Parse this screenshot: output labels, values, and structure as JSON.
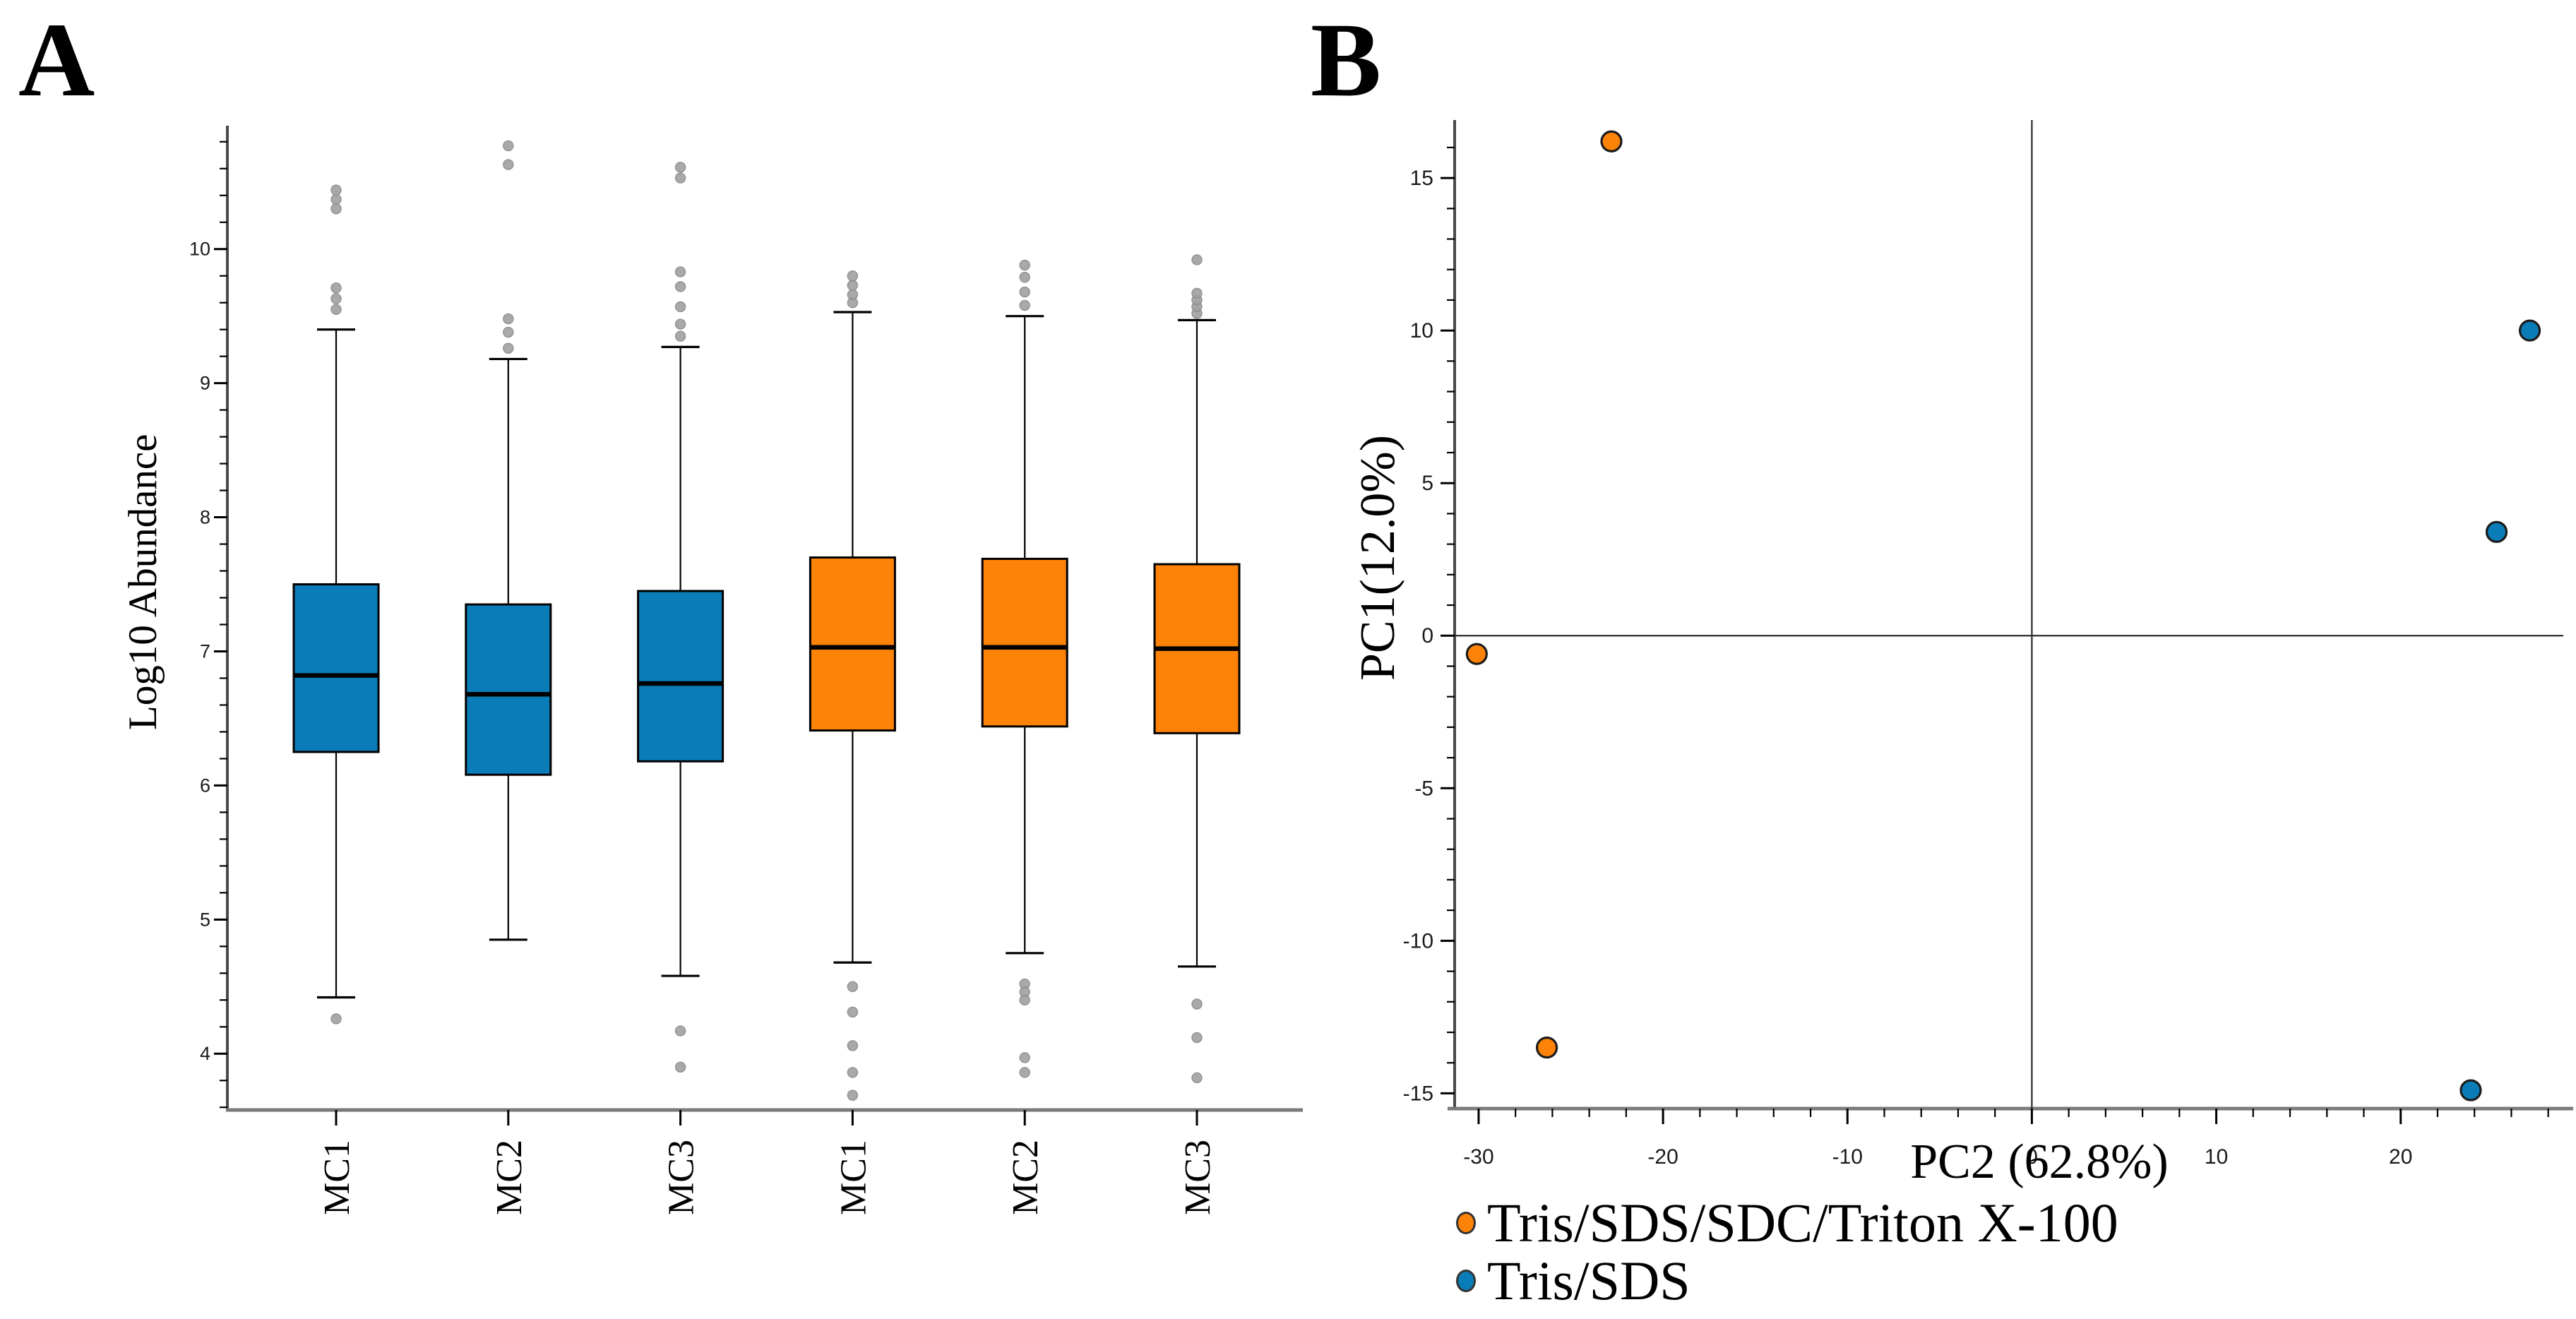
{
  "figure": {
    "background": "#FFFFFF"
  },
  "panel_a": {
    "label": "A"
  },
  "panel_b": {
    "label": "B"
  },
  "colors": {
    "blue": "#0A7DB8",
    "orange": "#FD8208",
    "outlier_gray": "#A2A2A2",
    "outlier_edge": "#8C8C8C",
    "y_axis_gray": "#4A4A4A",
    "x_axis_gray": "#7A7A7A",
    "zero_line": "#2B2B2B",
    "tick_black": "#000000",
    "tick_text": "#1A1A1A",
    "point_edge": "#1C1C1C",
    "median_black": "#000000"
  },
  "chart_data": [
    {
      "type": "boxplot",
      "panel": "A",
      "ylabel": "Log10 Abundance",
      "categories": [
        "MC1",
        "MC2",
        "MC3",
        "MC1",
        "MC2",
        "MC3"
      ],
      "y_axis": {
        "min": 3.58,
        "max": 10.92,
        "major_ticks": [
          4,
          5,
          6,
          7,
          8,
          9,
          10
        ],
        "minor_step": 0.2
      },
      "grid": "off",
      "group_colors": {
        "Tris/SDS": "#0A7DB8",
        "Tris/SDS/SDC/Triton X-100": "#FD8208"
      },
      "boxes": [
        {
          "category": "MC1",
          "group": "Tris/SDS",
          "q1": 6.25,
          "median": 6.82,
          "q3": 7.5,
          "whisker_low": 4.42,
          "whisker_high": 9.4,
          "outliers_high": [
            9.55,
            9.63,
            9.71,
            10.3,
            10.37,
            10.44
          ],
          "outliers_low": [
            4.26
          ]
        },
        {
          "category": "MC2",
          "group": "Tris/SDS",
          "q1": 6.08,
          "median": 6.68,
          "q3": 7.35,
          "whisker_low": 4.85,
          "whisker_high": 9.18,
          "outliers_high": [
            9.26,
            9.38,
            9.48,
            10.63,
            10.77
          ],
          "outliers_low": []
        },
        {
          "category": "MC3",
          "group": "Tris/SDS",
          "q1": 6.18,
          "median": 6.76,
          "q3": 7.45,
          "whisker_low": 4.58,
          "whisker_high": 9.27,
          "outliers_high": [
            9.35,
            9.44,
            9.57,
            9.72,
            9.83,
            10.53,
            10.61
          ],
          "outliers_low": [
            4.17,
            3.9
          ]
        },
        {
          "category": "MC1",
          "group": "Tris/SDS/SDC/Triton X-100",
          "q1": 6.41,
          "median": 7.03,
          "q3": 7.7,
          "whisker_low": 4.68,
          "whisker_high": 9.53,
          "outliers_high": [
            9.6,
            9.66,
            9.73,
            9.8
          ],
          "outliers_low": [
            4.5,
            4.31,
            4.06,
            3.86,
            3.69
          ]
        },
        {
          "category": "MC2",
          "group": "Tris/SDS/SDC/Triton X-100",
          "q1": 6.44,
          "median": 7.03,
          "q3": 7.69,
          "whisker_low": 4.75,
          "whisker_high": 9.5,
          "outliers_high": [
            9.58,
            9.68,
            9.79,
            9.88
          ],
          "outliers_low": [
            4.52,
            4.46,
            4.4,
            3.97,
            3.86
          ]
        },
        {
          "category": "MC3",
          "group": "Tris/SDS/SDC/Triton X-100",
          "q1": 6.39,
          "median": 7.02,
          "q3": 7.65,
          "whisker_low": 4.65,
          "whisker_high": 9.47,
          "outliers_high": [
            9.52,
            9.57,
            9.62,
            9.67,
            9.92
          ],
          "outliers_low": [
            4.37,
            4.12,
            3.82
          ]
        }
      ]
    },
    {
      "type": "scatter",
      "panel": "B",
      "xlabel": "PC2 (62.8%)",
      "ylabel": "PC1(12.0%)",
      "x_axis": {
        "min": -31.3,
        "max": 29.2,
        "major_ticks": [
          -30,
          -20,
          -10,
          0,
          10,
          20
        ],
        "minor_step": 2
      },
      "y_axis": {
        "min": -15.5,
        "max": 16.9,
        "major_ticks": [
          -15,
          -10,
          -5,
          0,
          5,
          10,
          15
        ],
        "minor_step": 1
      },
      "zero_lines": true,
      "grid": "off",
      "legend_position": "bottom-left",
      "series": [
        {
          "name": "Tris/SDS/SDC/Triton X-100",
          "color": "#FD8208",
          "points": [
            [
              -22.8,
              16.2
            ],
            [
              -30.1,
              -0.6
            ],
            [
              -26.3,
              -13.5
            ]
          ]
        },
        {
          "name": "Tris/SDS",
          "color": "#0A7DB8",
          "points": [
            [
              27.0,
              10.0
            ],
            [
              25.2,
              3.4
            ],
            [
              23.8,
              -14.9
            ]
          ]
        }
      ]
    }
  ]
}
